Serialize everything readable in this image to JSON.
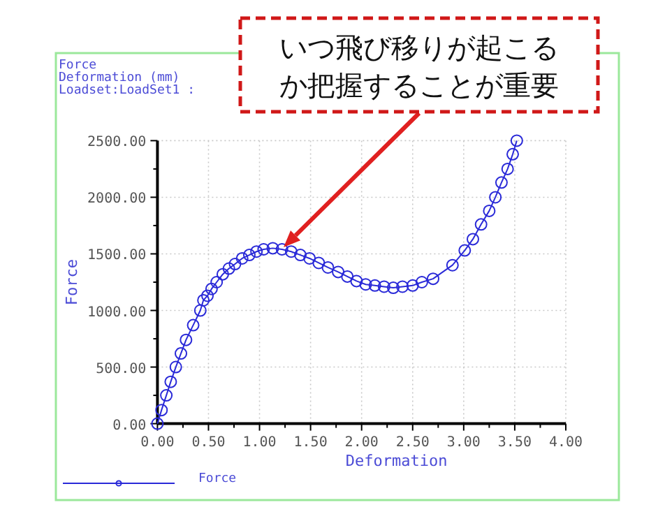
{
  "chart_data": {
    "type": "line",
    "title": "Force",
    "subtitle": "Deformation (mm)",
    "xlabel": "Deformation",
    "ylabel": "Force",
    "annotations": [
      "Loadset:LoadSet1 :",
      "いつ飛び移りが起こるか把握することが重要"
    ],
    "x": [
      0,
      0.04,
      0.087,
      0.13,
      0.18,
      0.23,
      0.28,
      0.35,
      0.42,
      0.45,
      0.49,
      0.53,
      0.58,
      0.64,
      0.7,
      0.76,
      0.83,
      0.9,
      0.97,
      1.04,
      1.13,
      1.22,
      1.31,
      1.4,
      1.49,
      1.58,
      1.67,
      1.77,
      1.86,
      1.95,
      2.04,
      2.13,
      2.22,
      2.31,
      2.4,
      2.5,
      2.59,
      2.7,
      2.89,
      3.01,
      3.09,
      3.17,
      3.25,
      3.31,
      3.37,
      3.43,
      3.48,
      3.52
    ],
    "series": [
      {
        "name": "Force",
        "color": "#2a2ad8",
        "values": [
          0,
          120,
          250,
          370,
          500,
          620,
          740,
          870,
          1000,
          1090,
          1130,
          1190,
          1250,
          1320,
          1370,
          1410,
          1460,
          1490,
          1520,
          1540,
          1550,
          1540,
          1520,
          1490,
          1460,
          1420,
          1380,
          1340,
          1300,
          1260,
          1230,
          1220,
          1210,
          1200,
          1210,
          1220,
          1250,
          1280,
          1400,
          1530,
          1630,
          1760,
          1880,
          2000,
          2130,
          2250,
          2380,
          2500
        ]
      }
    ],
    "xlim": [
      0,
      4
    ],
    "ylim": [
      0,
      2500
    ],
    "xticks": [
      {
        "value": 0,
        "label": "0.00"
      },
      {
        "value": 0.25,
        "label": null
      },
      {
        "value": 0.5,
        "label": "0.50"
      },
      {
        "value": 0.75,
        "label": null
      },
      {
        "value": 1,
        "label": "1.00"
      },
      {
        "value": 1.25,
        "label": null
      },
      {
        "value": 1.5,
        "label": "1.50"
      },
      {
        "value": 1.75,
        "label": null
      },
      {
        "value": 2,
        "label": "2.00"
      },
      {
        "value": 2.25,
        "label": null
      },
      {
        "value": 2.5,
        "label": "2.50"
      },
      {
        "value": 2.75,
        "label": null
      },
      {
        "value": 3,
        "label": "3.00"
      },
      {
        "value": 3.25,
        "label": null
      },
      {
        "value": 3.5,
        "label": "3.50"
      },
      {
        "value": 3.75,
        "label": null
      },
      {
        "value": 4,
        "label": "4.00"
      }
    ],
    "yticks": [
      {
        "value": 0,
        "label": "0.00"
      },
      {
        "value": 250,
        "label": null
      },
      {
        "value": 500,
        "label": "500.00"
      },
      {
        "value": 750,
        "label": null
      },
      {
        "value": 1000,
        "label": "1000.00"
      },
      {
        "value": 1250,
        "label": null
      },
      {
        "value": 1500,
        "label": "1500.00"
      },
      {
        "value": 1750,
        "label": null
      },
      {
        "value": 2000,
        "label": "2000.00"
      },
      {
        "value": 2250,
        "label": null
      },
      {
        "value": 2500,
        "label": "2500.00"
      }
    ],
    "grid": true,
    "legend": "bottom left",
    "marker": "circle",
    "line_style": "solid"
  }
}
